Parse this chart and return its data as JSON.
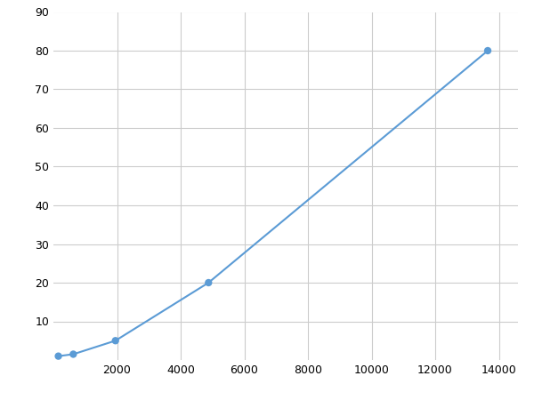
{
  "x": [
    156,
    625,
    1950,
    4875,
    13650
  ],
  "y": [
    1,
    1.5,
    5,
    20,
    80
  ],
  "line_color": "#5b9bd5",
  "marker_color": "#5b9bd5",
  "marker_size": 6,
  "line_width": 1.5,
  "xlim": [
    0,
    14600
  ],
  "ylim": [
    0,
    90
  ],
  "xticks": [
    2000,
    4000,
    6000,
    8000,
    10000,
    12000,
    14000
  ],
  "yticks": [
    10,
    20,
    30,
    40,
    50,
    60,
    70,
    80,
    90
  ],
  "grid_color": "#cccccc",
  "background_color": "#ffffff",
  "figsize": [
    6.0,
    4.5
  ],
  "dpi": 100
}
